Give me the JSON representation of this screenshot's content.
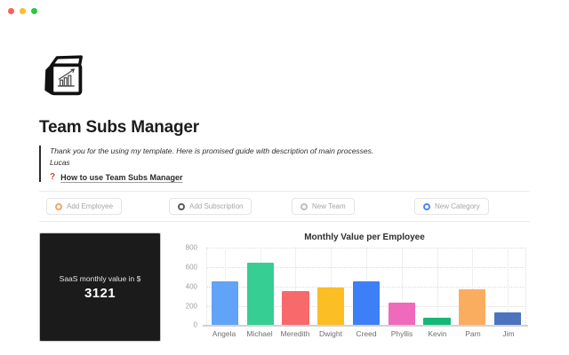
{
  "window": {
    "traffic_lights": {
      "close": "#FF5F57",
      "minimize": "#FEBC2E",
      "zoom": "#28C840"
    }
  },
  "page": {
    "title": "Team Subs Manager",
    "quote": {
      "line1": "Thank you for the using my template. Here is promised guide with description of main processes.",
      "line2": "Lucas"
    },
    "guide_link": {
      "icon_glyph": "?",
      "icon_color": "#E03E3E",
      "label": "How to use Team Subs Manager"
    }
  },
  "buttons": [
    {
      "label": "Add Employee",
      "icon": "gear-icon",
      "color": "#F2A46C"
    },
    {
      "label": "Add Subscription",
      "icon": "gear-icon",
      "color": "#5A5A58"
    },
    {
      "label": "New Team",
      "icon": "gear-icon",
      "color": "#BFBFBD"
    },
    {
      "label": "New Category",
      "icon": "gear-icon",
      "color": "#4E86F7"
    }
  ],
  "summary_card": {
    "label": "SaaS monthly value in $",
    "value": "3121",
    "background": "#1B1B1B",
    "value_color": "#FFFFFF"
  },
  "chart_data": {
    "type": "bar",
    "title": "Monthly Value per Employee",
    "categories": [
      "Angela",
      "Michael",
      "Meredith",
      "Dwight",
      "Creed",
      "Phyllis",
      "Kevin",
      "Pam",
      "Jim"
    ],
    "values": [
      450,
      645,
      350,
      385,
      455,
      230,
      80,
      370,
      130
    ],
    "colors": [
      "#61A3F7",
      "#36CE92",
      "#F7696B",
      "#FBBE25",
      "#3D7FF6",
      "#EF6ABC",
      "#17B877",
      "#FAAD5F",
      "#4C73BE"
    ],
    "xlabel": "",
    "ylabel": "",
    "ylim": [
      0,
      800
    ],
    "yticks": [
      0,
      200,
      400,
      600,
      800
    ],
    "grid": true,
    "legend": "none"
  }
}
